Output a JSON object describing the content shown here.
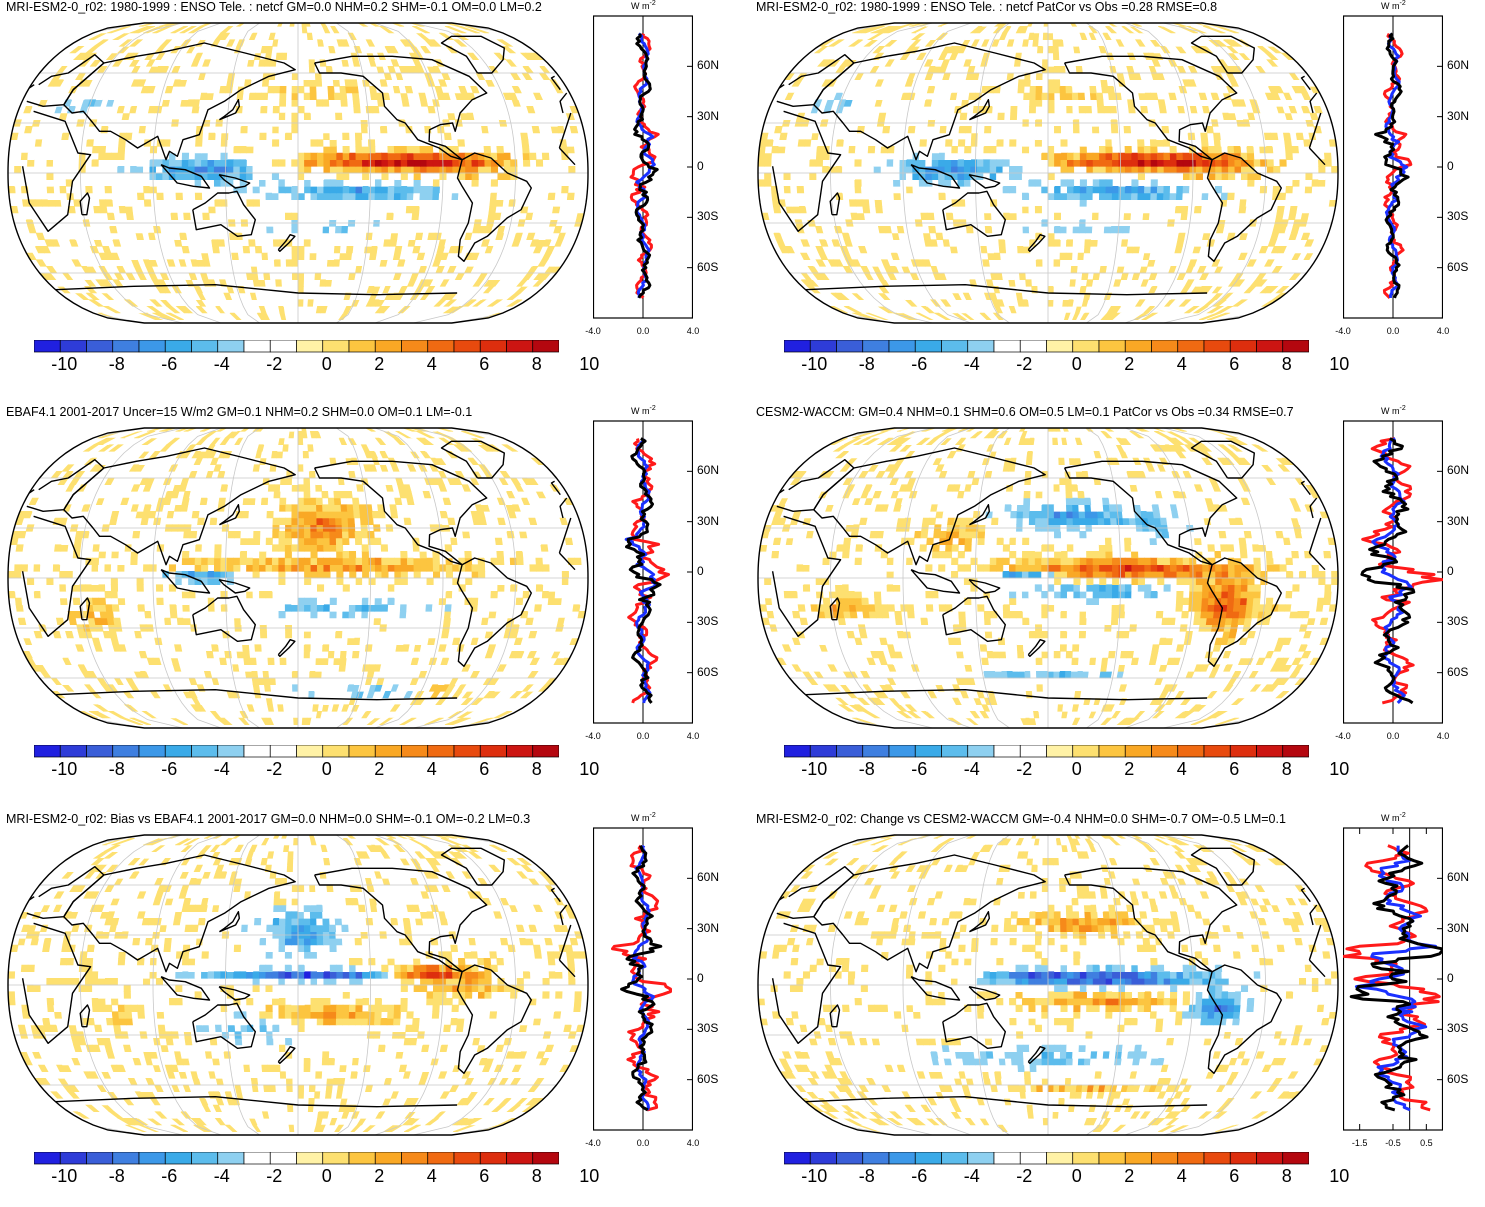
{
  "panels": [
    {
      "title": "MRI-ESM2-0_r02: 1980-1999 : ENSO Tele. : netcf GM=0.0 NHM=0.2 SHM=-0.1 OM=0.0 LM=0.2",
      "pattern": "model",
      "zonal": {
        "unit": "W m-2",
        "unit_base": "W m",
        "unit_exp": "-2",
        "xrange": [
          -4.0,
          4.0
        ],
        "xticks": [
          "-4.0",
          "0.0",
          "4.0"
        ],
        "amp": [
          0.8,
          0.6,
          0.7
        ]
      }
    },
    {
      "title": "MRI-ESM2-0_r02: 1980-1999 : ENSO Tele. : netcf PatCor vs Obs =0.28 RMSE=0.8",
      "pattern": "model",
      "zonal": {
        "unit": "W m-2",
        "unit_base": "W m",
        "unit_exp": "-2",
        "xrange": [
          -4.0,
          4.0
        ],
        "xticks": [
          "-4.0",
          "0.0",
          "4.0"
        ],
        "amp": [
          0.8,
          0.6,
          0.7
        ]
      }
    },
    {
      "title": "EBAF4.1 2001-2017 Uncer=15 W/m2 GM=0.1 NHM=0.2 SHM=0.0 OM=0.1 LM=-0.1",
      "pattern": "obs",
      "zonal": {
        "unit": "W m-2",
        "unit_base": "W m",
        "unit_exp": "-2",
        "xrange": [
          -4.0,
          4.0
        ],
        "xticks": [
          "-4.0",
          "0.0",
          "4.0"
        ],
        "amp": [
          1.2,
          0.7,
          0.9
        ]
      }
    },
    {
      "title": "CESM2-WACCM: GM=0.4 NHM=0.1 SHM=0.6 OM=0.5 LM=0.1 PatCor vs Obs =0.34 RMSE=0.7",
      "pattern": "cesm",
      "zonal": {
        "unit": "W m-2",
        "unit_base": "W m",
        "unit_exp": "-2",
        "xrange": [
          -4.0,
          4.0
        ],
        "xticks": [
          "-4.0",
          "0.0",
          "4.0"
        ],
        "amp": [
          2.0,
          1.0,
          1.6
        ]
      }
    },
    {
      "title": "MRI-ESM2-0_r02: Bias vs EBAF4.1 2001-2017 GM=0.0 NHM=0.0 SHM=-0.1 OM=-0.2 LM=0.3",
      "pattern": "bias",
      "zonal": {
        "unit": "W m-2",
        "unit_base": "W m",
        "unit_exp": "-2",
        "xrange": [
          -4.0,
          4.0
        ],
        "xticks": [
          "-4.0",
          "0.0",
          "4.0"
        ],
        "amp": [
          1.5,
          0.6,
          1.0
        ]
      }
    },
    {
      "title": "MRI-ESM2-0_r02: Change vs CESM2-WACCM GM=-0.4 NHM=0.0 SHM=-0.7 OM=-0.5 LM=0.1",
      "pattern": "change",
      "zonal": {
        "unit": "W m-2",
        "unit_base": "W m",
        "unit_exp": "-2",
        "xrange": [
          -2.0,
          1.0
        ],
        "xticks": [
          "-1.5",
          "-0.5",
          "0.5"
        ],
        "xtick_values": [
          -1.5,
          -0.5,
          0.5
        ],
        "amp": [
          1.2,
          0.9,
          1.0
        ]
      }
    }
  ],
  "colorbar": {
    "labels": [
      "-10",
      "-8",
      "-6",
      "-4",
      "-2",
      "0",
      "2",
      "4",
      "6",
      "8",
      "10"
    ],
    "colors": [
      "#2020e0",
      "#2e3cd8",
      "#3a5ed8",
      "#3f7fe0",
      "#3c98e8",
      "#3aaae8",
      "#5cbcec",
      "#8ed0f0",
      "#ffffff",
      "#ffffff",
      "#fff2a6",
      "#fde070",
      "#fcc540",
      "#f9a825",
      "#f68a1a",
      "#f06a12",
      "#e84a0e",
      "#dd2e0e",
      "#cc1512",
      "#b4070f"
    ]
  },
  "lat_labels": [
    "60N",
    "30N",
    "0",
    "30S",
    "60S"
  ],
  "line_colors": {
    "ocean": "#ff1a1a",
    "land": "#1a30ff",
    "total": "#000000"
  }
}
